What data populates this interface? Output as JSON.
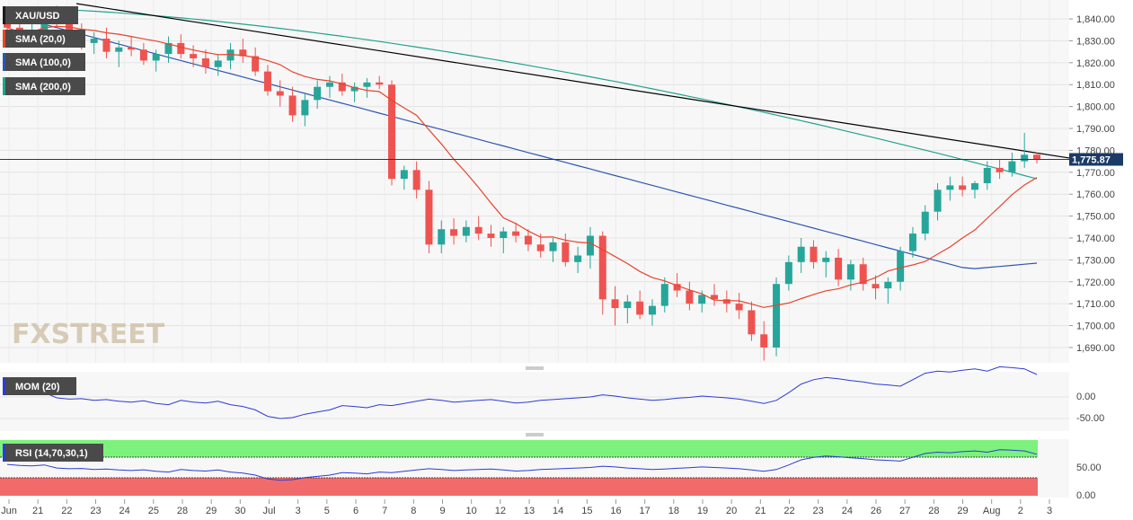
{
  "chart_data": {
    "type": "candlestick",
    "symbol": "XAU/USD",
    "current_price": 1775.87,
    "current_price_label": "1,775.87",
    "watermark": "FXSTREET",
    "panels": [
      {
        "name": "price",
        "y_ticks": [
          "1,840.00",
          "1,830.00",
          "1,820.00",
          "1,810.00",
          "1,800.00",
          "1,790.00",
          "1,780.00",
          "1,770.00",
          "1,760.00",
          "1,750.00",
          "1,740.00",
          "1,730.00",
          "1,720.00",
          "1,710.00",
          "1,700.00",
          "1,690.00"
        ],
        "ylim": [
          1683,
          1847
        ],
        "indicators": [
          "SMA (20,0)",
          "SMA (100,0)",
          "SMA (200,0)"
        ]
      },
      {
        "name": "MOM (20)",
        "y_ticks": [
          "0.00",
          "-50.00"
        ]
      },
      {
        "name": "RSI (14,70,30,1)",
        "y_ticks": [
          "50.00",
          "0.00"
        ]
      }
    ],
    "x_tick_labels": [
      "Jun",
      "21",
      "22",
      "23",
      "24",
      "25",
      "28",
      "29",
      "30",
      "Jul",
      "3",
      "5",
      "6",
      "7",
      "8",
      "9",
      "10",
      "12",
      "13",
      "14",
      "15",
      "16",
      "17",
      "18",
      "19",
      "20",
      "21",
      "22",
      "23",
      "24",
      "26",
      "27",
      "28",
      "29",
      "Aug",
      "2",
      "3"
    ],
    "colors": {
      "up": "#26a69a",
      "down": "#ef5350",
      "sma20": "#e8442c",
      "sma100": "#2d56b0",
      "sma200": "#21a38d",
      "trendline": "#000000",
      "momentum": "#2d3bd6",
      "rsi": "#2d3bd6",
      "rsi_overbought": "#7cf27c",
      "rsi_oversold": "#f26b6b"
    },
    "candles_ohlc": [
      [
        1838,
        1841,
        1834,
        1836
      ],
      [
        1836,
        1840,
        1830,
        1832
      ],
      [
        1832,
        1838,
        1828,
        1834
      ],
      [
        1834,
        1845,
        1830,
        1842
      ],
      [
        1842,
        1846,
        1836,
        1839
      ],
      [
        1839,
        1842,
        1832,
        1835
      ],
      [
        1835,
        1838,
        1826,
        1829
      ],
      [
        1829,
        1834,
        1824,
        1831
      ],
      [
        1831,
        1836,
        1822,
        1825
      ],
      [
        1825,
        1830,
        1818,
        1827
      ],
      [
        1827,
        1832,
        1823,
        1826
      ],
      [
        1826,
        1829,
        1819,
        1821
      ],
      [
        1821,
        1826,
        1816,
        1824
      ],
      [
        1824,
        1832,
        1820,
        1829
      ],
      [
        1829,
        1833,
        1822,
        1824
      ],
      [
        1824,
        1828,
        1818,
        1822
      ],
      [
        1822,
        1826,
        1815,
        1818
      ],
      [
        1818,
        1824,
        1814,
        1821
      ],
      [
        1821,
        1829,
        1817,
        1826
      ],
      [
        1826,
        1831,
        1820,
        1823
      ],
      [
        1823,
        1827,
        1814,
        1816
      ],
      [
        1816,
        1819,
        1805,
        1807
      ],
      [
        1807,
        1812,
        1800,
        1805
      ],
      [
        1805,
        1809,
        1793,
        1796
      ],
      [
        1796,
        1806,
        1791,
        1803
      ],
      [
        1803,
        1812,
        1799,
        1809
      ],
      [
        1809,
        1814,
        1804,
        1811
      ],
      [
        1811,
        1815,
        1805,
        1807
      ],
      [
        1807,
        1811,
        1802,
        1809
      ],
      [
        1809,
        1813,
        1804,
        1811
      ],
      [
        1811,
        1814,
        1808,
        1810
      ],
      [
        1810,
        1812,
        1764,
        1767
      ],
      [
        1767,
        1773,
        1762,
        1771
      ],
      [
        1771,
        1775,
        1758,
        1762
      ],
      [
        1762,
        1766,
        1733,
        1737
      ],
      [
        1737,
        1748,
        1733,
        1744
      ],
      [
        1744,
        1749,
        1737,
        1741
      ],
      [
        1741,
        1748,
        1738,
        1745
      ],
      [
        1745,
        1750,
        1739,
        1742
      ],
      [
        1742,
        1746,
        1736,
        1740
      ],
      [
        1740,
        1745,
        1733,
        1743
      ],
      [
        1743,
        1747,
        1738,
        1741
      ],
      [
        1741,
        1744,
        1734,
        1737
      ],
      [
        1737,
        1742,
        1731,
        1734
      ],
      [
        1734,
        1740,
        1729,
        1738
      ],
      [
        1738,
        1742,
        1727,
        1729
      ],
      [
        1729,
        1736,
        1724,
        1732
      ],
      [
        1732,
        1745,
        1726,
        1741
      ],
      [
        1741,
        1743,
        1705,
        1712
      ],
      [
        1712,
        1718,
        1700,
        1708
      ],
      [
        1708,
        1714,
        1701,
        1711
      ],
      [
        1711,
        1716,
        1703,
        1705
      ],
      [
        1705,
        1712,
        1700,
        1709
      ],
      [
        1709,
        1722,
        1706,
        1719
      ],
      [
        1719,
        1724,
        1713,
        1716
      ],
      [
        1716,
        1720,
        1707,
        1710
      ],
      [
        1710,
        1716,
        1706,
        1714
      ],
      [
        1714,
        1719,
        1709,
        1712
      ],
      [
        1712,
        1716,
        1706,
        1710
      ],
      [
        1710,
        1715,
        1703,
        1707
      ],
      [
        1707,
        1711,
        1693,
        1696
      ],
      [
        1696,
        1702,
        1684,
        1690
      ],
      [
        1690,
        1722,
        1686,
        1719
      ],
      [
        1719,
        1732,
        1716,
        1729
      ],
      [
        1729,
        1740,
        1724,
        1736
      ],
      [
        1736,
        1739,
        1726,
        1729
      ],
      [
        1729,
        1734,
        1722,
        1731
      ],
      [
        1731,
        1735,
        1718,
        1721
      ],
      [
        1721,
        1730,
        1716,
        1728
      ],
      [
        1728,
        1731,
        1716,
        1719
      ],
      [
        1719,
        1723,
        1712,
        1717
      ],
      [
        1717,
        1722,
        1710,
        1720
      ],
      [
        1720,
        1736,
        1716,
        1734
      ],
      [
        1734,
        1745,
        1731,
        1742
      ],
      [
        1742,
        1755,
        1739,
        1752
      ],
      [
        1752,
        1765,
        1748,
        1762
      ],
      [
        1762,
        1768,
        1757,
        1764
      ],
      [
        1764,
        1768,
        1759,
        1762
      ],
      [
        1762,
        1766,
        1758,
        1765
      ],
      [
        1765,
        1775,
        1762,
        1772
      ],
      [
        1772,
        1776,
        1767,
        1770
      ],
      [
        1770,
        1779,
        1768,
        1775
      ],
      [
        1775,
        1788,
        1772,
        1778
      ],
      [
        1778,
        1779,
        1774,
        1775.87
      ]
    ],
    "momentum_values": [
      12,
      8,
      6,
      10,
      -2,
      -5,
      -4,
      -8,
      -6,
      -10,
      -12,
      -9,
      -15,
      -18,
      -8,
      -12,
      -14,
      -10,
      -18,
      -22,
      -30,
      -45,
      -50,
      -48,
      -40,
      -35,
      -30,
      -20,
      -22,
      -25,
      -18,
      -20,
      -15,
      -10,
      -5,
      -8,
      -12,
      -10,
      -8,
      -6,
      -10,
      -14,
      -12,
      -8,
      -6,
      -4,
      -2,
      0,
      5,
      2,
      -2,
      -5,
      -8,
      -6,
      -3,
      -1,
      2,
      0,
      -2,
      -5,
      -10,
      -15,
      -8,
      10,
      30,
      40,
      45,
      42,
      38,
      35,
      30,
      28,
      25,
      40,
      55,
      60,
      58,
      62,
      65,
      60,
      70,
      68,
      65,
      52
    ]
  }
}
